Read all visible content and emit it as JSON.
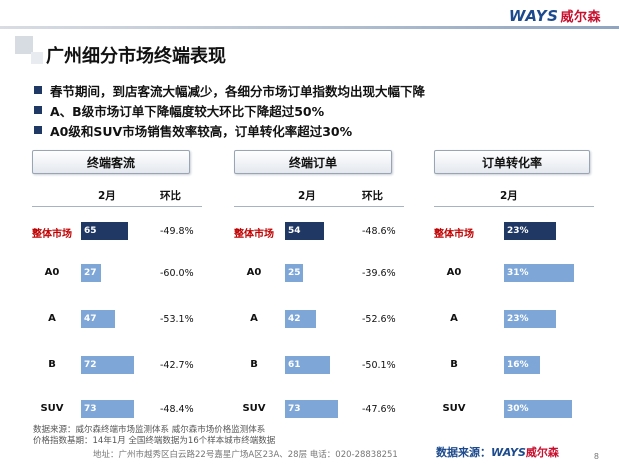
{
  "brand": {
    "logo_en": "WAYS",
    "logo_cn": "威尔森"
  },
  "title": "广州细分市场终端表现",
  "bullets": [
    "春节期间，到店客流大幅减少，各细分市场订单指数均出现大幅下降",
    "A、B级市场订单下降幅度较大环比下降超过50%",
    "A0级和SUV市场销售效率较高，订单转化率超过30%"
  ],
  "panels": [
    {
      "header": "终端客流",
      "col1": "2月",
      "col2": "环比",
      "rows": [
        {
          "label": "整体市场",
          "value": "65",
          "level": 65,
          "ratio": "-49.8%"
        },
        {
          "label": "A0",
          "value": "27",
          "level": 27,
          "ratio": "-60.0%"
        },
        {
          "label": "A",
          "value": "47",
          "level": 47,
          "ratio": "-53.1%"
        },
        {
          "label": "B",
          "value": "72",
          "level": 72,
          "ratio": "-42.7%"
        },
        {
          "label": "SUV",
          "value": "73",
          "level": 73,
          "ratio": "-48.4%"
        }
      ]
    },
    {
      "header": "终端订单",
      "col1": "2月",
      "col2": "环比",
      "rows": [
        {
          "label": "整体市场",
          "value": "54",
          "level": 54,
          "ratio": "-48.6%"
        },
        {
          "label": "A0",
          "value": "25",
          "level": 25,
          "ratio": "-39.6%"
        },
        {
          "label": "A",
          "value": "42",
          "level": 42,
          "ratio": "-52.6%"
        },
        {
          "label": "B",
          "value": "61",
          "level": 61,
          "ratio": "-50.1%"
        },
        {
          "label": "SUV",
          "value": "73",
          "level": 73,
          "ratio": "-47.6%"
        }
      ]
    },
    {
      "header": "订单转化率",
      "col1": "2月",
      "rows": [
        {
          "label": "整体市场",
          "value": "23%",
          "level": 23
        },
        {
          "label": "A0",
          "value": "31%",
          "level": 31
        },
        {
          "label": "A",
          "value": "23%",
          "level": 23
        },
        {
          "label": "B",
          "value": "16%",
          "level": 16
        },
        {
          "label": "SUV",
          "value": "30%",
          "level": 30
        }
      ]
    }
  ],
  "colors": {
    "total_bar": "#1f3864",
    "segment_bar": "#7ea7d8",
    "total_label": "#c00000"
  },
  "footer": {
    "line1": "数据来源：威尔森终端市场监测体系  威尔森市场价格监测体系",
    "line2": "价格指数基期：14年1月      全国终端数据为16个样本城市终端数据",
    "address": "地址：广州市越秀区白云路22号嘉星广场A区23A、28层   电话：020-28838251",
    "source_label": "数据来源：",
    "page": "8"
  }
}
